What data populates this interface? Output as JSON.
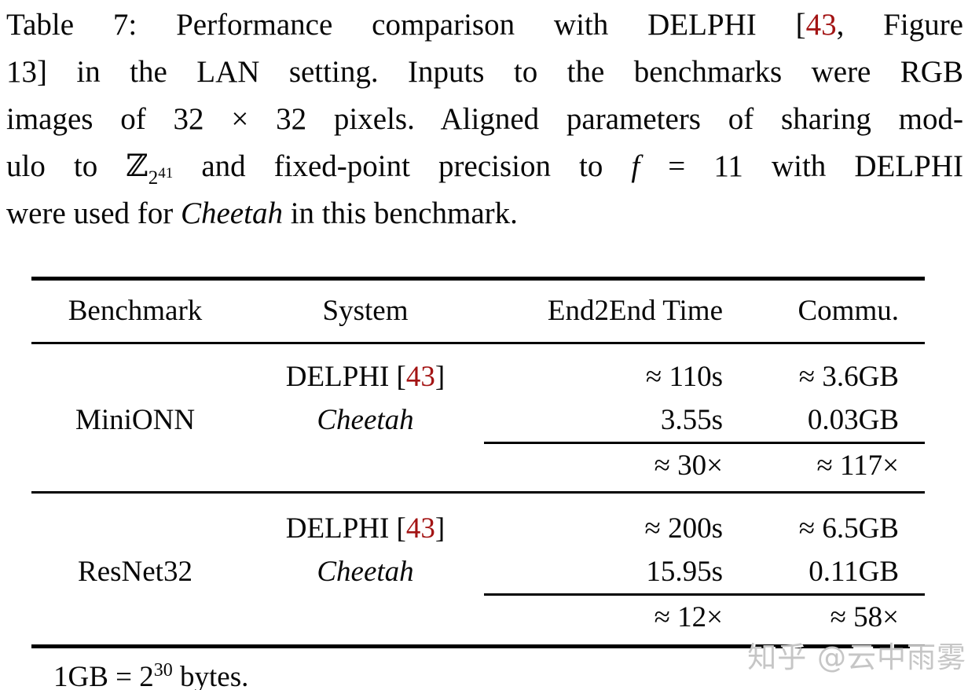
{
  "colors": {
    "citation_red": "#a31414",
    "rule_black": "#000000",
    "watermark_gray": "#c6c6c6"
  },
  "caption": {
    "line1": {
      "pre": "Table 7: Performance comparison with DELPHI [",
      "ref": "43",
      "post": ", Figure"
    },
    "line2": "13] in the LAN setting. Inputs to the benchmarks were RGB",
    "line3": "images of 32 × 32 pixels. Aligned parameters of sharing mod-",
    "line4": {
      "pre": "ulo to ",
      "z": "ℤ",
      "zsub": "2",
      "zsup": "41",
      "mid": " and fixed-point precision to ",
      "f": "f",
      "post": " = 11 with DELPHI"
    },
    "line5": {
      "pre": "were used for ",
      "cheetah": "Cheetah",
      "post": " in this benchmark."
    }
  },
  "table": {
    "headers": {
      "benchmark": "Benchmark",
      "system": "System",
      "time": "End2End Time",
      "comm": "Commu."
    },
    "sections": [
      {
        "benchmark": "MiniONN",
        "delphi": {
          "pre": "DELPHI [",
          "ref": "43",
          "post": "]",
          "time": "≈ 110s",
          "comm": "≈ 3.6GB"
        },
        "cheetah": {
          "name": "Cheetah",
          "time": "3.55s",
          "comm": "0.03GB"
        },
        "speedup": {
          "time": "≈ 30×",
          "comm": "≈ 117×"
        }
      },
      {
        "benchmark": "ResNet32",
        "delphi": {
          "pre": "DELPHI [",
          "ref": "43",
          "post": "]",
          "time": "≈ 200s",
          "comm": "≈ 6.5GB"
        },
        "cheetah": {
          "name": "Cheetah",
          "time": "15.95s",
          "comm": "0.11GB"
        },
        "speedup": {
          "time": "≈ 12×",
          "comm": "≈ 58×"
        }
      }
    ]
  },
  "footnote": {
    "pre": "1GB = 2",
    "sup": "30",
    "post": " bytes."
  },
  "watermark": {
    "text": "知乎 @云中雨雾"
  }
}
